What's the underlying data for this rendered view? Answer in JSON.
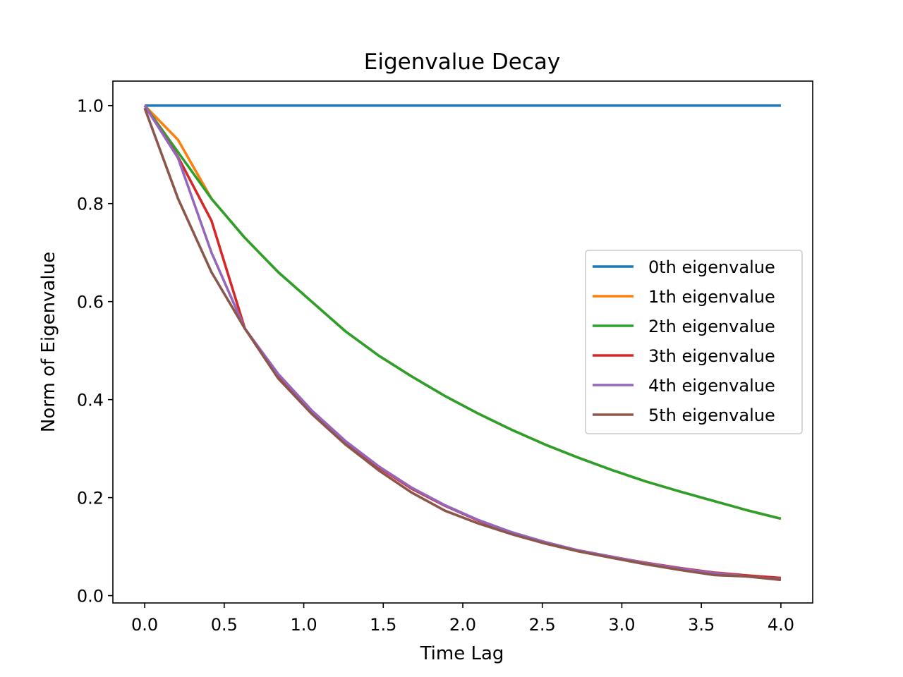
{
  "chart_data": {
    "type": "line",
    "title": "Eigenvalue Decay",
    "xlabel": "Time Lag",
    "ylabel": "Norm of Eigenvalue",
    "xlim": [
      -0.2,
      4.2
    ],
    "ylim": [
      -0.015,
      1.05
    ],
    "xticks": [
      0.0,
      0.5,
      1.0,
      1.5,
      2.0,
      2.5,
      3.0,
      3.5,
      4.0
    ],
    "xtick_labels": [
      "0.0",
      "0.5",
      "1.0",
      "1.5",
      "2.0",
      "2.5",
      "3.0",
      "3.5",
      "4.0"
    ],
    "yticks": [
      0.0,
      0.2,
      0.4,
      0.6,
      0.8,
      1.0
    ],
    "ytick_labels": [
      "0.0",
      "0.2",
      "0.4",
      "0.6",
      "0.8",
      "1.0"
    ],
    "grid": false,
    "legend_position": "center-right",
    "x": [
      0.0,
      0.21,
      0.42,
      0.63,
      0.84,
      1.05,
      1.26,
      1.47,
      1.68,
      1.89,
      2.1,
      2.31,
      2.52,
      2.73,
      2.94,
      3.15,
      3.37,
      3.58,
      3.79,
      4.0
    ],
    "series": [
      {
        "name": "0th eigenvalue",
        "color": "#1f77b4",
        "values": [
          1.0,
          1.0,
          1.0,
          1.0,
          1.0,
          1.0,
          1.0,
          1.0,
          1.0,
          1.0,
          1.0,
          1.0,
          1.0,
          1.0,
          1.0,
          1.0,
          1.0,
          1.0,
          1.0,
          1.0
        ]
      },
      {
        "name": "1th eigenvalue",
        "color": "#ff7f0e",
        "values": [
          1.0,
          0.93,
          0.81,
          0.73,
          0.66,
          0.6,
          0.54,
          0.49,
          0.447,
          0.407,
          0.371,
          0.338,
          0.308,
          0.281,
          0.256,
          0.233,
          0.212,
          0.193,
          0.174,
          0.157
        ]
      },
      {
        "name": "2th eigenvalue",
        "color": "#2ca02c",
        "values": [
          1.0,
          0.905,
          0.81,
          0.73,
          0.66,
          0.6,
          0.54,
          0.49,
          0.447,
          0.407,
          0.371,
          0.338,
          0.308,
          0.281,
          0.256,
          0.233,
          0.212,
          0.193,
          0.174,
          0.157
        ]
      },
      {
        "name": "3th eigenvalue",
        "color": "#d62728",
        "values": [
          1.0,
          0.895,
          0.765,
          0.545,
          0.45,
          0.375,
          0.315,
          0.262,
          0.218,
          0.183,
          0.153,
          0.128,
          0.108,
          0.092,
          0.079,
          0.067,
          0.056,
          0.047,
          0.041,
          0.036
        ]
      },
      {
        "name": "4th eigenvalue",
        "color": "#9467bd",
        "values": [
          1.0,
          0.893,
          0.7,
          0.545,
          0.452,
          0.378,
          0.316,
          0.264,
          0.22,
          0.184,
          0.154,
          0.129,
          0.109,
          0.092,
          0.079,
          0.066,
          0.055,
          0.046,
          0.039,
          0.033
        ]
      },
      {
        "name": "5th eigenvalue",
        "color": "#8c564b",
        "values": [
          0.995,
          0.81,
          0.66,
          0.545,
          0.443,
          0.371,
          0.309,
          0.256,
          0.21,
          0.173,
          0.147,
          0.125,
          0.106,
          0.09,
          0.077,
          0.064,
          0.052,
          0.042,
          0.039,
          0.032
        ]
      }
    ]
  }
}
